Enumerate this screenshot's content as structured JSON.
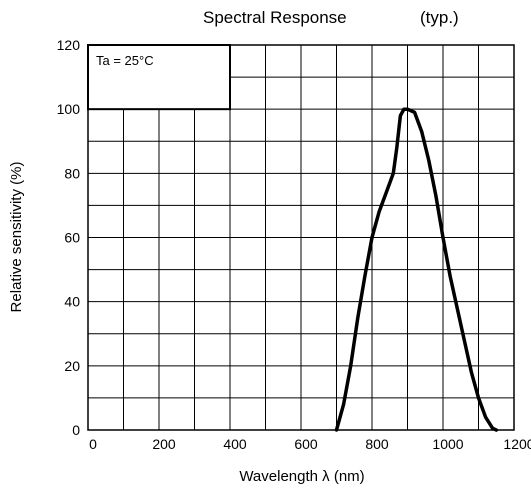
{
  "chart_data": {
    "type": "line",
    "title": "Spectral Response",
    "subtitle": "(typ.)",
    "xlabel": "Wavelength   λ (nm)",
    "ylabel": "Relative sensitivity   (%)",
    "xlim": [
      0,
      1200
    ],
    "ylim": [
      0,
      120
    ],
    "x_ticks": [
      "0",
      "200",
      "400",
      "600",
      "800",
      "1000",
      "1200"
    ],
    "y_ticks": [
      "0",
      "20",
      "40",
      "60",
      "80",
      "100",
      "120"
    ],
    "grid": true,
    "annotation": "Ta = 25°C",
    "series": [
      {
        "x": [
          700,
          720,
          740,
          760,
          780,
          800,
          820,
          840,
          860,
          870,
          880,
          890,
          900,
          920,
          940,
          960,
          980,
          1000,
          1020,
          1040,
          1060,
          1080,
          1100,
          1120,
          1140,
          1150
        ],
        "y": [
          0,
          8,
          20,
          35,
          48,
          60,
          68,
          74,
          80,
          88,
          98,
          100,
          100,
          99,
          93,
          84,
          73,
          60,
          48,
          38,
          28,
          18,
          10,
          4,
          0.5,
          0
        ],
        "color": "#000000"
      }
    ]
  }
}
